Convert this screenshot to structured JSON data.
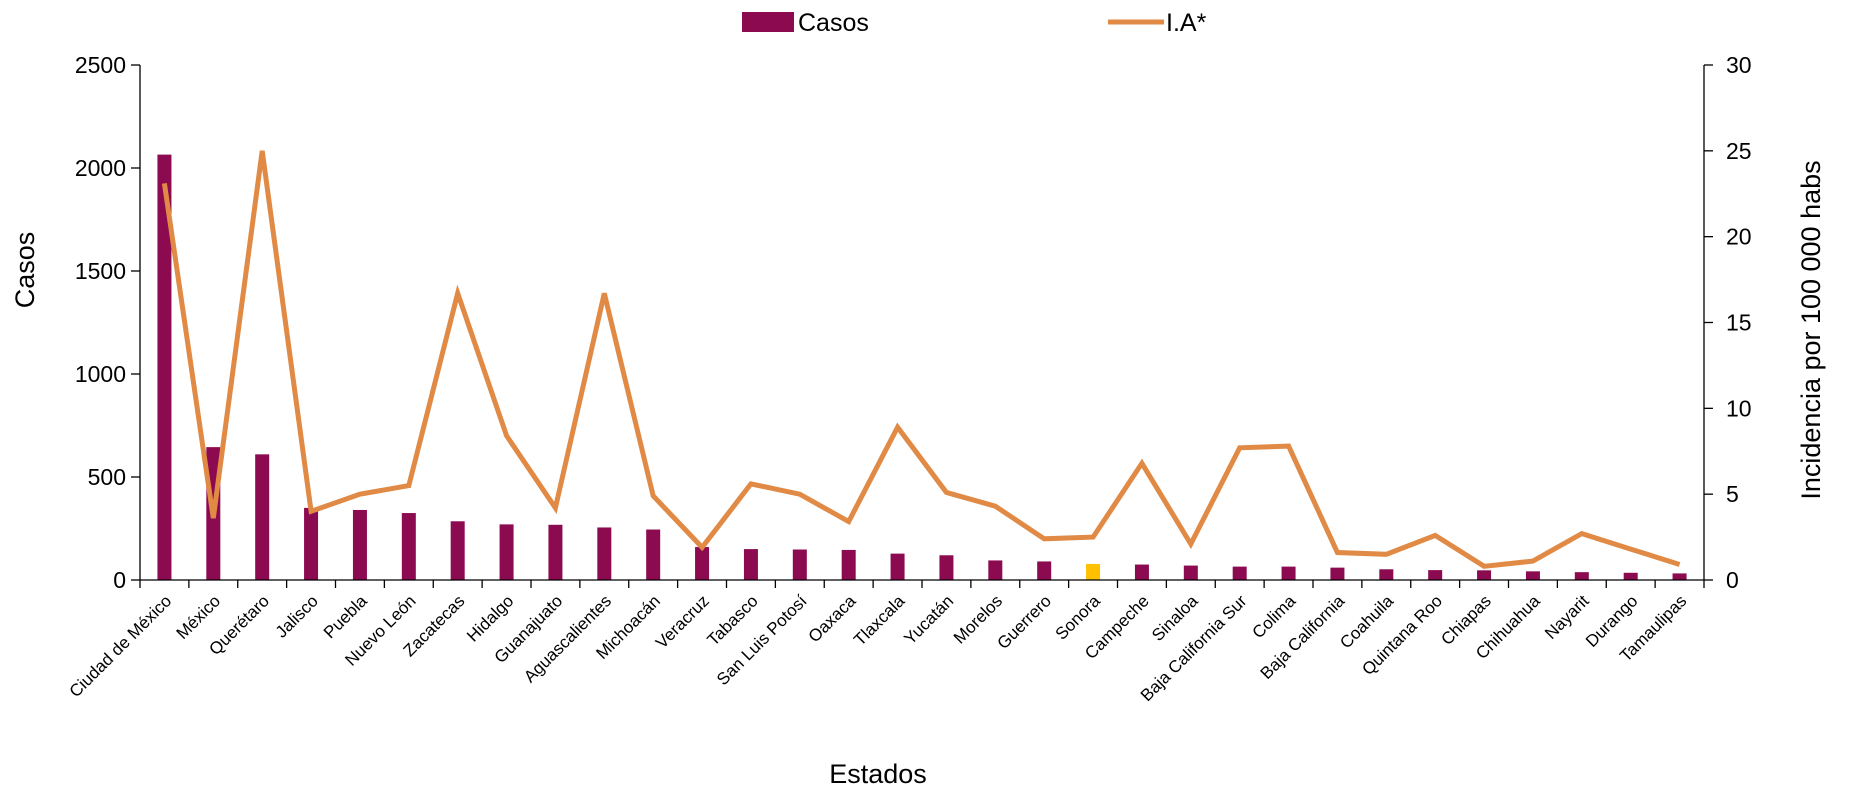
{
  "chart_data": {
    "type": "bar",
    "xlabel": "Estados",
    "ylabel": "Casos",
    "y2label": "Incidencia por 100 000 habs",
    "ylim": [
      0,
      2500
    ],
    "y2lim": [
      0,
      30
    ],
    "yticks": [
      0,
      500,
      1000,
      1500,
      2000,
      2500
    ],
    "y2ticks": [
      0,
      5,
      10,
      15,
      20,
      25,
      30
    ],
    "legend_position": "top-center",
    "colors": {
      "bar": "#8b0a50",
      "highlight_bar": "#ffc000",
      "line": "#e08a45"
    },
    "highlight_category": "Sonora",
    "categories": [
      "Ciudad de México",
      "México",
      "Querétaro",
      "Jalisco",
      "Puebla",
      "Nuevo León",
      "Zacatecas",
      "Hidalgo",
      "Guanajuato",
      "Aguascalientes",
      "Michoacán",
      "Veracruz",
      "Tabasco",
      "San Luis Potosí",
      "Oaxaca",
      "Tlaxcala",
      "Yucatán",
      "Morelos",
      "Guerrero",
      "Sonora",
      "Campeche",
      "Sinaloa",
      "Baja California Sur",
      "Colima",
      "Baja California",
      "Coahuila",
      "Quintana Roo",
      "Chiapas",
      "Chihuahua",
      "Nayarit",
      "Durango",
      "Tamaulipas"
    ],
    "series": [
      {
        "name": "Casos",
        "type": "bar",
        "axis": "left",
        "values": [
          2065,
          645,
          610,
          350,
          340,
          325,
          285,
          270,
          268,
          255,
          245,
          160,
          150,
          148,
          146,
          128,
          120,
          95,
          90,
          78,
          75,
          70,
          65,
          65,
          60,
          52,
          48,
          47,
          42,
          38,
          35,
          32
        ]
      },
      {
        "name": "I.A*",
        "type": "line",
        "axis": "right",
        "values": [
          23.1,
          3.6,
          25.0,
          4.0,
          5.0,
          5.5,
          16.7,
          8.4,
          4.2,
          16.7,
          4.9,
          1.9,
          5.6,
          5.0,
          3.4,
          8.9,
          5.1,
          4.3,
          2.4,
          2.5,
          6.8,
          2.1,
          7.7,
          7.8,
          1.6,
          1.5,
          2.6,
          0.8,
          1.1,
          2.7,
          1.8,
          0.9
        ]
      }
    ]
  }
}
